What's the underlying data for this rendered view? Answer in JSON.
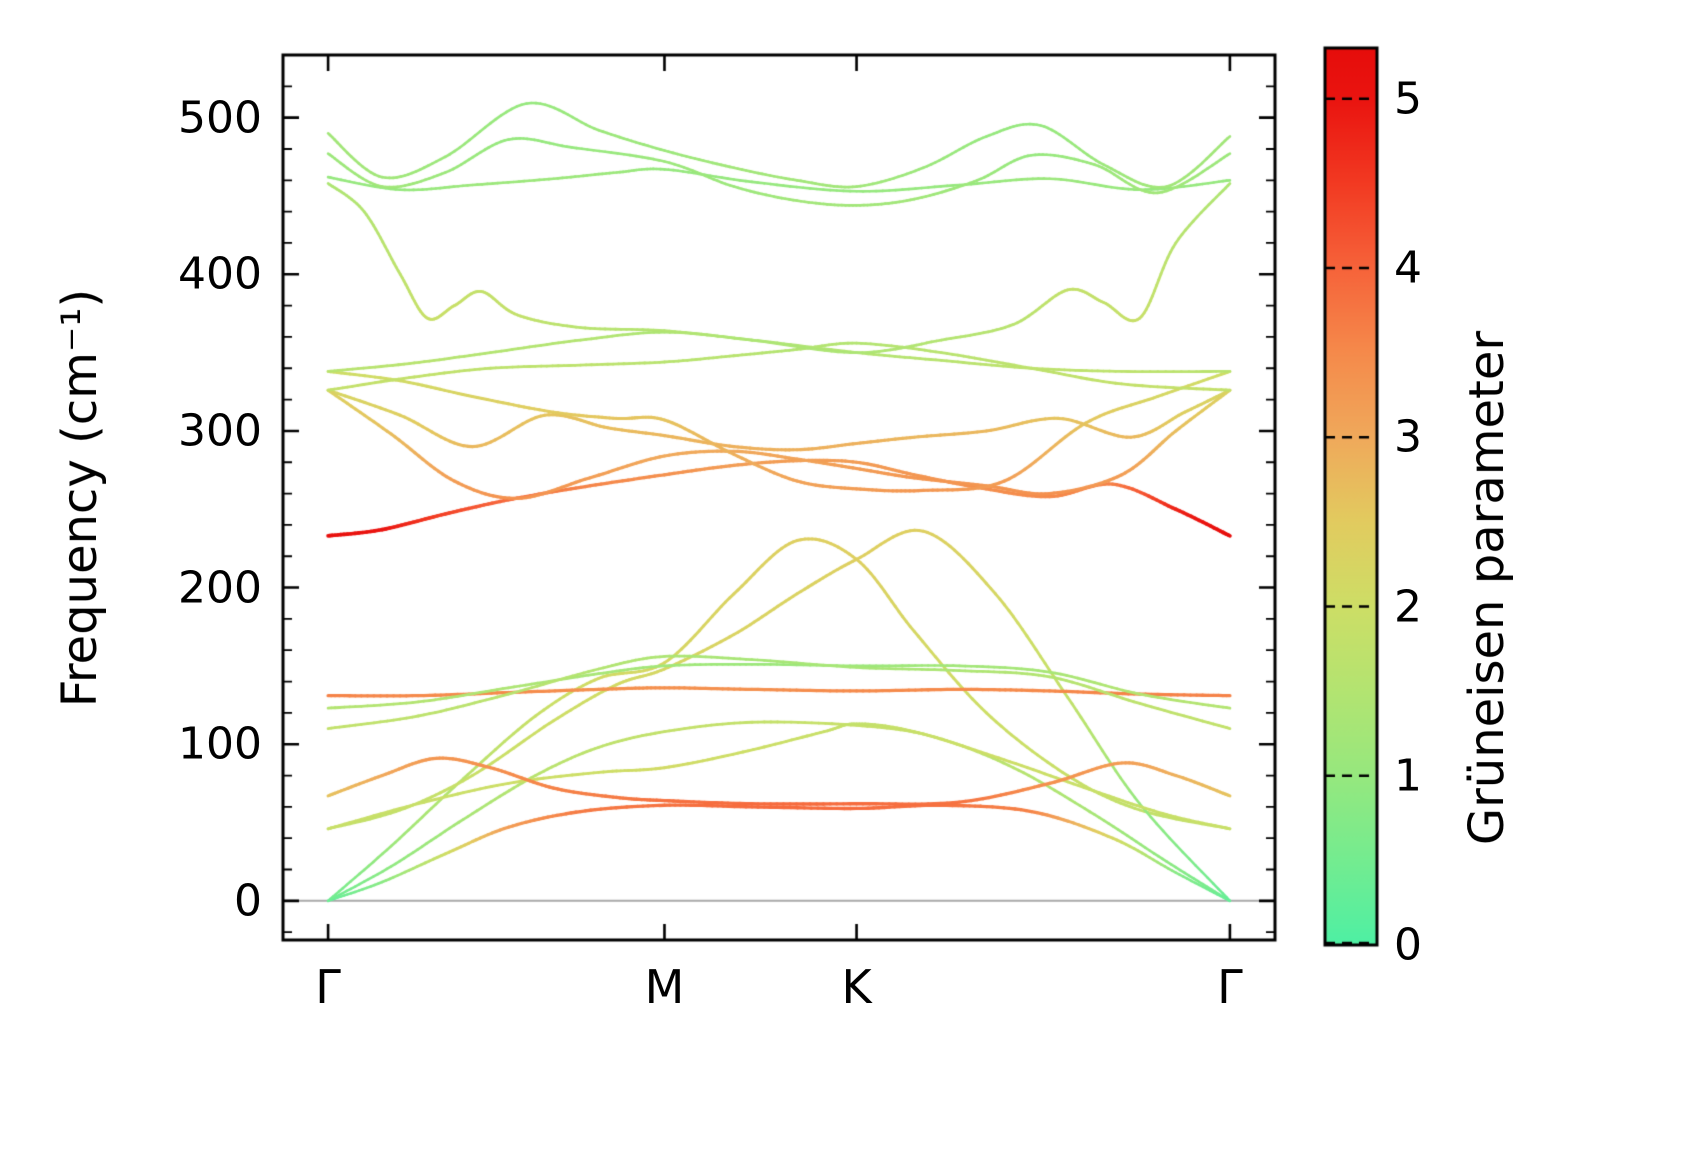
{
  "chart_data": {
    "type": "line",
    "title": "",
    "ylabel": "Frequency (cm⁻¹)",
    "xlabel": "",
    "xticks": [
      {
        "label": "Γ",
        "pos": 0.0
      },
      {
        "label": "M",
        "pos": 0.373
      },
      {
        "label": "K",
        "pos": 0.586
      },
      {
        "label": "Γ",
        "pos": 1.0
      }
    ],
    "yticks": [
      0,
      100,
      200,
      300,
      400,
      500
    ],
    "xlim": [
      -0.05,
      1.05
    ],
    "ylim": [
      -25,
      540
    ],
    "grid": false,
    "zero_line": {
      "y": 0,
      "color": "#a9a9a9"
    },
    "colorbar": {
      "label": "Grüneisen parameter",
      "ticks": [
        0,
        1,
        2,
        3,
        4,
        5
      ],
      "range": [
        0,
        5.3
      ],
      "stops": [
        [
          0.0,
          "#4ef0a4"
        ],
        [
          0.5,
          "#74ec90"
        ],
        [
          1.0,
          "#96e87e"
        ],
        [
          1.5,
          "#b3e471"
        ],
        [
          2.0,
          "#cdde66"
        ],
        [
          2.5,
          "#e2cb5f"
        ],
        [
          3.0,
          "#f0a95b"
        ],
        [
          3.5,
          "#f58a4b"
        ],
        [
          4.0,
          "#f6633a"
        ],
        [
          4.5,
          "#f23a22"
        ],
        [
          5.0,
          "#ea1410"
        ],
        [
          5.3,
          "#e60d0b"
        ]
      ]
    },
    "bands": [
      {
        "x": [
          0,
          0.06,
          0.13,
          0.2,
          0.28,
          0.373,
          0.47,
          0.586,
          0.68,
          0.78,
          0.87,
          0.94,
          1
        ],
        "y": [
          0,
          12,
          30,
          47,
          57,
          61,
          60,
          59,
          61,
          57,
          40,
          18,
          0
        ],
        "g": [
          0.2,
          0.8,
          2.0,
          3.2,
          3.7,
          3.8,
          3.9,
          3.9,
          3.8,
          3.6,
          2.2,
          0.8,
          0.2
        ]
      },
      {
        "x": [
          0,
          0.07,
          0.15,
          0.23,
          0.3,
          0.373,
          0.47,
          0.586,
          0.67,
          0.76,
          0.85,
          0.93,
          1
        ],
        "y": [
          0,
          22,
          52,
          80,
          98,
          108,
          114,
          112,
          105,
          85,
          55,
          25,
          0
        ],
        "g": [
          0.3,
          0.9,
          1.3,
          1.6,
          1.7,
          1.8,
          1.8,
          1.9,
          1.8,
          1.6,
          1.3,
          0.9,
          0.3
        ]
      },
      {
        "x": [
          0,
          0.07,
          0.15,
          0.23,
          0.3,
          0.373,
          0.45,
          0.52,
          0.586,
          0.65,
          0.73,
          0.82,
          0.9,
          1
        ],
        "y": [
          0,
          35,
          78,
          118,
          142,
          152,
          196,
          230,
          218,
          172,
          120,
          80,
          58,
          46
        ],
        "g": [
          0.4,
          1.1,
          1.6,
          1.9,
          2.1,
          2.2,
          2.3,
          2.4,
          2.4,
          2.2,
          2.0,
          1.9,
          1.8,
          1.8
        ]
      },
      {
        "x": [
          0,
          0.08,
          0.16,
          0.25,
          0.32,
          0.373,
          0.45,
          0.52,
          0.586,
          0.66,
          0.74,
          0.82,
          0.9,
          1
        ],
        "y": [
          46,
          58,
          80,
          115,
          138,
          148,
          170,
          196,
          218,
          236,
          196,
          130,
          62,
          0
        ],
        "g": [
          1.8,
          1.8,
          1.9,
          2.0,
          2.1,
          2.2,
          2.3,
          2.3,
          2.4,
          2.4,
          2.2,
          1.8,
          1.0,
          0.3
        ]
      },
      {
        "x": [
          0,
          0.1,
          0.2,
          0.3,
          0.373,
          0.46,
          0.55,
          0.586,
          0.65,
          0.75,
          0.85,
          0.93,
          1
        ],
        "y": [
          46,
          62,
          75,
          82,
          85,
          95,
          108,
          113,
          108,
          90,
          70,
          55,
          46
        ],
        "g": [
          1.9,
          1.9,
          2.0,
          2.0,
          2.1,
          2.0,
          1.9,
          1.8,
          1.9,
          2.0,
          1.9,
          1.9,
          1.9
        ]
      },
      {
        "x": [
          0,
          0.06,
          0.12,
          0.18,
          0.25,
          0.32,
          0.373,
          0.47,
          0.586,
          0.7,
          0.8,
          0.88,
          0.94,
          1
        ],
        "y": [
          67,
          80,
          91,
          85,
          72,
          66,
          64,
          62,
          62,
          63,
          75,
          88,
          80,
          67
        ],
        "g": [
          2.6,
          3.0,
          3.3,
          3.4,
          3.6,
          3.7,
          3.8,
          3.9,
          3.9,
          3.8,
          3.4,
          3.2,
          2.9,
          2.6
        ]
      },
      {
        "x": [
          0,
          0.1,
          0.2,
          0.3,
          0.373,
          0.47,
          0.586,
          0.7,
          0.8,
          0.9,
          1
        ],
        "y": [
          131,
          131,
          133,
          135,
          136,
          135,
          134,
          135,
          134,
          132,
          131
        ],
        "g": [
          3.6,
          3.5,
          3.5,
          3.4,
          3.4,
          3.4,
          3.5,
          3.5,
          3.5,
          3.6,
          3.6
        ]
      },
      {
        "x": [
          0,
          0.1,
          0.2,
          0.3,
          0.373,
          0.47,
          0.586,
          0.7,
          0.8,
          0.9,
          1
        ],
        "y": [
          123,
          127,
          136,
          145,
          150,
          151,
          150,
          150,
          146,
          132,
          123
        ],
        "g": [
          1.5,
          1.5,
          1.4,
          1.3,
          1.2,
          1.1,
          1.1,
          1.2,
          1.3,
          1.5,
          1.5
        ]
      },
      {
        "x": [
          0,
          0.1,
          0.2,
          0.3,
          0.373,
          0.47,
          0.586,
          0.7,
          0.8,
          0.9,
          1
        ],
        "y": [
          110,
          118,
          132,
          148,
          156,
          154,
          149,
          147,
          143,
          126,
          110
        ],
        "g": [
          1.8,
          1.7,
          1.6,
          1.5,
          1.4,
          1.3,
          1.3,
          1.4,
          1.5,
          1.7,
          1.8
        ]
      },
      {
        "x": [
          0,
          0.06,
          0.13,
          0.2,
          0.28,
          0.373,
          0.45,
          0.52,
          0.586,
          0.65,
          0.72,
          0.8,
          0.87,
          0.94,
          1
        ],
        "y": [
          233,
          237,
          247,
          256,
          264,
          272,
          278,
          281,
          280,
          272,
          264,
          258,
          266,
          250,
          233
        ],
        "g": [
          5.2,
          5.0,
          4.4,
          3.9,
          3.6,
          3.4,
          3.2,
          3.2,
          3.2,
          3.3,
          3.4,
          3.5,
          3.6,
          4.8,
          5.3
        ]
      },
      {
        "x": [
          0,
          0.08,
          0.16,
          0.24,
          0.31,
          0.373,
          0.45,
          0.52,
          0.586,
          0.65,
          0.73,
          0.81,
          0.89,
          0.95,
          1
        ],
        "y": [
          326,
          310,
          290,
          310,
          302,
          297,
          290,
          288,
          292,
          296,
          300,
          308,
          296,
          312,
          326
        ],
        "g": [
          2.2,
          2.4,
          2.8,
          2.6,
          2.7,
          2.8,
          2.9,
          2.9,
          2.9,
          2.8,
          2.8,
          2.6,
          2.8,
          2.4,
          2.2
        ]
      },
      {
        "x": [
          0,
          0.07,
          0.14,
          0.21,
          0.29,
          0.373,
          0.45,
          0.52,
          0.586,
          0.65,
          0.73,
          0.8,
          0.88,
          0.94,
          1
        ],
        "y": [
          326,
          298,
          268,
          257,
          270,
          284,
          287,
          282,
          276,
          270,
          265,
          260,
          272,
          300,
          326
        ],
        "g": [
          2.3,
          2.7,
          3.2,
          3.4,
          3.2,
          3.0,
          3.0,
          3.1,
          3.2,
          3.3,
          3.3,
          3.4,
          3.2,
          2.7,
          2.3
        ]
      },
      {
        "x": [
          0,
          0.08,
          0.16,
          0.25,
          0.32,
          0.373,
          0.45,
          0.52,
          0.586,
          0.66,
          0.75,
          0.84,
          0.92,
          1
        ],
        "y": [
          338,
          332,
          322,
          312,
          308,
          307,
          285,
          268,
          263,
          262,
          268,
          305,
          322,
          338
        ],
        "g": [
          2.0,
          2.1,
          2.3,
          2.5,
          2.6,
          2.6,
          2.9,
          3.1,
          3.2,
          3.3,
          3.2,
          2.6,
          2.2,
          2.0
        ]
      },
      {
        "x": [
          0,
          0.09,
          0.18,
          0.28,
          0.373,
          0.47,
          0.586,
          0.68,
          0.78,
          0.88,
          1
        ],
        "y": [
          338,
          343,
          350,
          358,
          363,
          358,
          350,
          345,
          340,
          338,
          338
        ],
        "g": [
          1.6,
          1.6,
          1.5,
          1.5,
          1.4,
          1.4,
          1.5,
          1.6,
          1.7,
          1.7,
          1.6
        ]
      },
      {
        "x": [
          0,
          0.09,
          0.18,
          0.28,
          0.373,
          0.45,
          0.52,
          0.586,
          0.68,
          0.78,
          0.88,
          1
        ],
        "y": [
          326,
          334,
          340,
          342,
          344,
          348,
          352,
          356,
          350,
          340,
          330,
          326
        ],
        "g": [
          1.8,
          1.8,
          1.7,
          1.7,
          1.6,
          1.6,
          1.5,
          1.5,
          1.6,
          1.7,
          1.8,
          1.8
        ]
      },
      {
        "x": [
          0,
          0.04,
          0.08,
          0.11,
          0.14,
          0.17,
          0.21,
          0.28,
          0.373,
          0.47,
          0.586,
          0.68,
          0.76,
          0.82,
          0.86,
          0.9,
          0.94,
          1
        ],
        "y": [
          458,
          440,
          400,
          372,
          380,
          389,
          374,
          366,
          364,
          358,
          350,
          358,
          368,
          390,
          382,
          372,
          420,
          458
        ],
        "g": [
          1.4,
          1.5,
          1.7,
          1.9,
          1.9,
          1.8,
          1.8,
          1.6,
          1.5,
          1.4,
          1.4,
          1.5,
          1.6,
          1.8,
          1.8,
          1.9,
          1.6,
          1.4
        ]
      },
      {
        "x": [
          0,
          0.08,
          0.16,
          0.25,
          0.32,
          0.373,
          0.47,
          0.586,
          0.7,
          0.8,
          0.9,
          1
        ],
        "y": [
          462,
          454,
          457,
          461,
          465,
          467,
          459,
          453,
          457,
          461,
          454,
          460
        ],
        "g": [
          1.0,
          1.0,
          1.1,
          1.1,
          1.1,
          1.0,
          1.0,
          1.0,
          1.0,
          1.1,
          1.0,
          1.0
        ]
      },
      {
        "x": [
          0,
          0.06,
          0.13,
          0.2,
          0.27,
          0.373,
          0.45,
          0.52,
          0.586,
          0.65,
          0.72,
          0.78,
          0.85,
          0.92,
          1
        ],
        "y": [
          477,
          456,
          465,
          486,
          481,
          472,
          456,
          447,
          444,
          448,
          460,
          476,
          470,
          452,
          477
        ],
        "g": [
          1.1,
          1.2,
          1.1,
          1.0,
          1.0,
          1.1,
          1.1,
          1.2,
          1.2,
          1.2,
          1.1,
          1.0,
          1.1,
          1.2,
          1.1
        ]
      },
      {
        "x": [
          0,
          0.06,
          0.13,
          0.22,
          0.3,
          0.373,
          0.45,
          0.52,
          0.586,
          0.66,
          0.73,
          0.79,
          0.86,
          0.93,
          1
        ],
        "y": [
          490,
          462,
          475,
          509,
          492,
          479,
          468,
          460,
          456,
          468,
          488,
          495,
          470,
          456,
          488
        ],
        "g": [
          1.2,
          1.2,
          1.1,
          1.0,
          1.1,
          1.1,
          1.2,
          1.2,
          1.2,
          1.1,
          1.0,
          1.0,
          1.1,
          1.2,
          1.2
        ]
      }
    ]
  }
}
